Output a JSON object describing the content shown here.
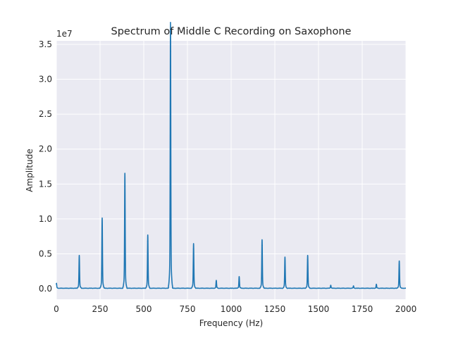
{
  "chart_data": {
    "type": "line",
    "title": "Spectrum of Middle C Recording on Saxophone",
    "xlabel": "Frequency (Hz)",
    "ylabel": "Amplitude",
    "y_scale_label": "1e7",
    "xlim": [
      0,
      2000
    ],
    "ylim": [
      -1500000,
      35500000
    ],
    "x_ticks": [
      0,
      250,
      500,
      750,
      1000,
      1250,
      1500,
      1750,
      2000
    ],
    "x_tick_labels": [
      "0",
      "250",
      "500",
      "750",
      "1000",
      "1250",
      "1500",
      "1750",
      "2000"
    ],
    "y_ticks": [
      0,
      5000000,
      10000000,
      15000000,
      20000000,
      25000000,
      30000000,
      35000000
    ],
    "y_tick_labels": [
      "0.0",
      "0.5",
      "1.0",
      "1.5",
      "2.0",
      "2.5",
      "3.0",
      "3.5"
    ],
    "grid": true,
    "line_color": "#1f77b4",
    "background_color": "#eaeaf2",
    "series": [
      {
        "peaks": [
          {
            "x": 0,
            "y": 700000
          },
          {
            "x": 131,
            "y": 4200000
          },
          {
            "x": 262,
            "y": 9000000
          },
          {
            "x": 392,
            "y": 14700000
          },
          {
            "x": 523,
            "y": 6800000
          },
          {
            "x": 653,
            "y": 34000000
          },
          {
            "x": 785,
            "y": 5700000
          },
          {
            "x": 915,
            "y": 1000000
          },
          {
            "x": 1046,
            "y": 1500000
          },
          {
            "x": 1177,
            "y": 6200000
          },
          {
            "x": 1308,
            "y": 4000000
          },
          {
            "x": 1438,
            "y": 4200000
          },
          {
            "x": 1570,
            "y": 400000
          },
          {
            "x": 1700,
            "y": 300000
          },
          {
            "x": 1831,
            "y": 500000
          },
          {
            "x": 1962,
            "y": 3500000
          }
        ]
      }
    ]
  }
}
